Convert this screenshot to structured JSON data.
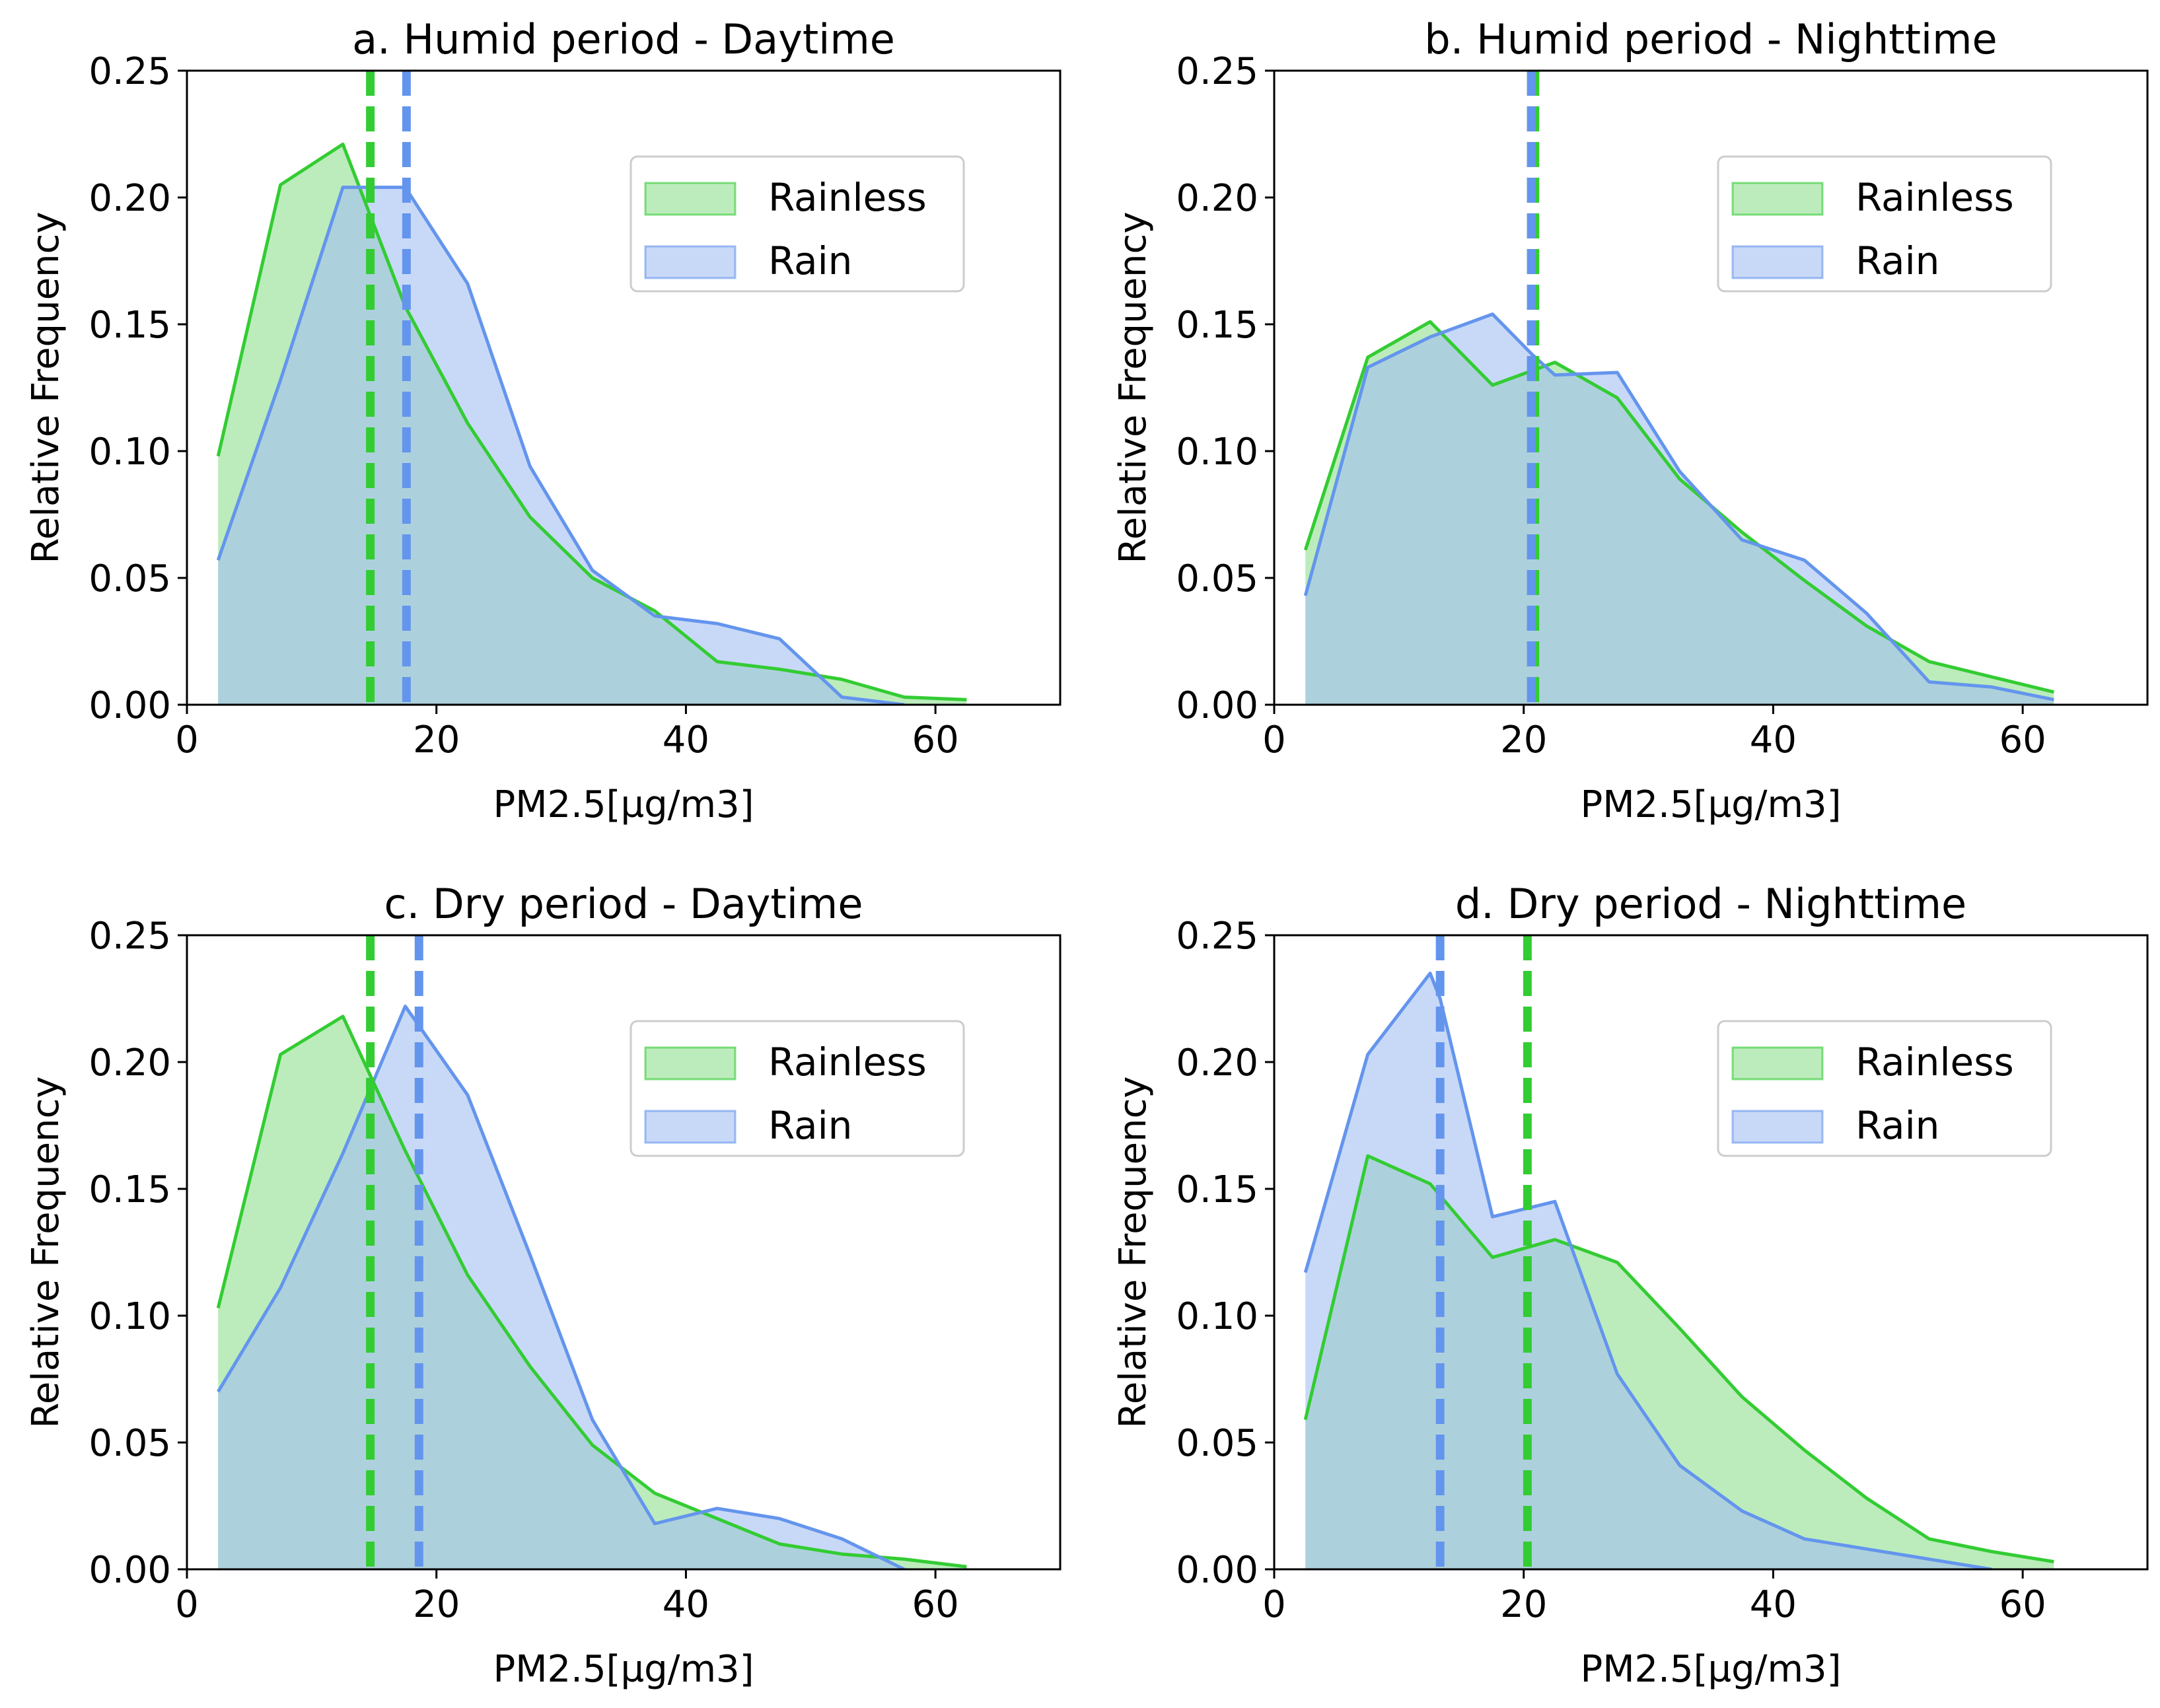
{
  "colors": {
    "rainless_line": "#33cc33",
    "rainless_fill": "#90e090",
    "rain_line": "#6495ed",
    "rain_fill": "#a4bff2"
  },
  "chart_data": [
    {
      "type": "area",
      "title": "a. Humid period - Daytime",
      "xlabel": "PM2.5[µg/m3]",
      "ylabel": "Relative Frequency",
      "xlim": [
        0,
        70
      ],
      "ylim": [
        0,
        0.25
      ],
      "xticks": [
        0,
        20,
        40,
        60
      ],
      "yticks": [
        0.0,
        0.05,
        0.1,
        0.15,
        0.2,
        0.25
      ],
      "ytick_labels": [
        "0.00",
        "0.05",
        "0.10",
        "0.15",
        "0.20",
        "0.25"
      ],
      "legend": [
        "Rainless",
        "Rain"
      ],
      "legend_position": "upper-right",
      "series": [
        {
          "name": "Rainless",
          "x": [
            2.5,
            7.5,
            12.5,
            17.5,
            22.5,
            27.5,
            32.5,
            37.5,
            42.5,
            47.5,
            52.5,
            57.5,
            62.5
          ],
          "values": [
            0.098,
            0.205,
            0.221,
            0.157,
            0.111,
            0.074,
            0.05,
            0.037,
            0.017,
            0.014,
            0.01,
            0.003,
            0.002
          ],
          "mean": 14.7
        },
        {
          "name": "Rain",
          "x": [
            2.5,
            7.5,
            12.5,
            17.5,
            22.5,
            27.5,
            32.5,
            37.5,
            42.5,
            47.5,
            52.5,
            57.5
          ],
          "values": [
            0.057,
            0.128,
            0.204,
            0.204,
            0.166,
            0.094,
            0.053,
            0.035,
            0.032,
            0.026,
            0.003,
            0.0
          ],
          "mean": 17.6
        }
      ]
    },
    {
      "type": "area",
      "title": "b. Humid period - Nighttime",
      "xlabel": "PM2.5[µg/m3]",
      "ylabel": "Relative Frequency",
      "xlim": [
        0,
        70
      ],
      "ylim": [
        0,
        0.25
      ],
      "xticks": [
        0,
        20,
        40,
        60
      ],
      "yticks": [
        0.0,
        0.05,
        0.1,
        0.15,
        0.2,
        0.25
      ],
      "ytick_labels": [
        "0.00",
        "0.05",
        "0.10",
        "0.15",
        "0.20",
        "0.25"
      ],
      "legend": [
        "Rainless",
        "Rain"
      ],
      "legend_position": "upper-right",
      "series": [
        {
          "name": "Rainless",
          "x": [
            2.5,
            7.5,
            12.5,
            17.5,
            22.5,
            27.5,
            32.5,
            37.5,
            42.5,
            47.5,
            52.5,
            57.5,
            62.5
          ],
          "values": [
            0.061,
            0.137,
            0.151,
            0.126,
            0.135,
            0.121,
            0.089,
            0.068,
            0.049,
            0.031,
            0.017,
            0.011,
            0.005
          ],
          "mean": 20.9
        },
        {
          "name": "Rain",
          "x": [
            2.5,
            7.5,
            12.5,
            17.5,
            20.7,
            22.5,
            27.5,
            32.5,
            37.5,
            42.5,
            47.5,
            52.5,
            57.5,
            62.5
          ],
          "values": [
            0.043,
            0.133,
            0.145,
            0.154,
            0.138,
            0.13,
            0.131,
            0.092,
            0.065,
            0.057,
            0.036,
            0.009,
            0.007,
            0.002
          ],
          "mean": 20.6
        }
      ]
    },
    {
      "type": "area",
      "title": "c. Dry period - Daytime",
      "xlabel": "PM2.5[µg/m3]",
      "ylabel": "Relative Frequency",
      "xlim": [
        0,
        70
      ],
      "ylim": [
        0,
        0.25
      ],
      "xticks": [
        0,
        20,
        40,
        60
      ],
      "yticks": [
        0.0,
        0.05,
        0.1,
        0.15,
        0.2,
        0.25
      ],
      "ytick_labels": [
        "0.00",
        "0.05",
        "0.10",
        "0.15",
        "0.20",
        "0.25"
      ],
      "legend": [
        "Rainless",
        "Rain"
      ],
      "legend_position": "upper-right",
      "series": [
        {
          "name": "Rainless",
          "x": [
            2.5,
            7.5,
            12.5,
            17.5,
            22.5,
            27.5,
            32.5,
            37.5,
            42.5,
            47.5,
            52.5,
            57.5,
            62.5
          ],
          "values": [
            0.103,
            0.203,
            0.218,
            0.165,
            0.116,
            0.08,
            0.049,
            0.03,
            0.02,
            0.01,
            0.006,
            0.004,
            0.001
          ],
          "mean": 14.7
        },
        {
          "name": "Rain",
          "x": [
            2.5,
            7.5,
            12.5,
            17.5,
            22.5,
            27.5,
            32.5,
            37.5,
            42.5,
            47.5,
            52.5,
            57.5
          ],
          "values": [
            0.07,
            0.111,
            0.164,
            0.222,
            0.187,
            0.124,
            0.059,
            0.018,
            0.024,
            0.02,
            0.012,
            0.0
          ],
          "mean": 18.6
        }
      ]
    },
    {
      "type": "area",
      "title": "d.   Dry period - Nighttime",
      "xlabel": "PM2.5[µg/m3]",
      "ylabel": "Relative Frequency",
      "xlim": [
        0,
        70
      ],
      "ylim": [
        0,
        0.25
      ],
      "xticks": [
        0,
        20,
        40,
        60
      ],
      "yticks": [
        0.0,
        0.05,
        0.1,
        0.15,
        0.2,
        0.25
      ],
      "ytick_labels": [
        "0.00",
        "0.05",
        "0.10",
        "0.15",
        "0.20",
        "0.25"
      ],
      "legend": [
        "Rainless",
        "Rain"
      ],
      "legend_position": "upper-right",
      "series": [
        {
          "name": "Rainless",
          "x": [
            2.5,
            7.5,
            12.5,
            17.5,
            22.5,
            27.5,
            32.5,
            37.5,
            42.5,
            47.5,
            52.5,
            57.5,
            62.5
          ],
          "values": [
            0.059,
            0.163,
            0.152,
            0.123,
            0.13,
            0.121,
            0.095,
            0.068,
            0.047,
            0.028,
            0.012,
            0.007,
            0.003
          ],
          "mean": 20.3
        },
        {
          "name": "Rain",
          "x": [
            2.5,
            7.5,
            12.5,
            13.3,
            17.5,
            22.5,
            27.5,
            32.5,
            37.5,
            42.5,
            47.5,
            52.5,
            57.5
          ],
          "values": [
            0.117,
            0.203,
            0.235,
            0.225,
            0.139,
            0.145,
            0.077,
            0.041,
            0.023,
            0.012,
            0.008,
            0.004,
            0.0
          ],
          "mean": 13.3
        }
      ]
    }
  ]
}
